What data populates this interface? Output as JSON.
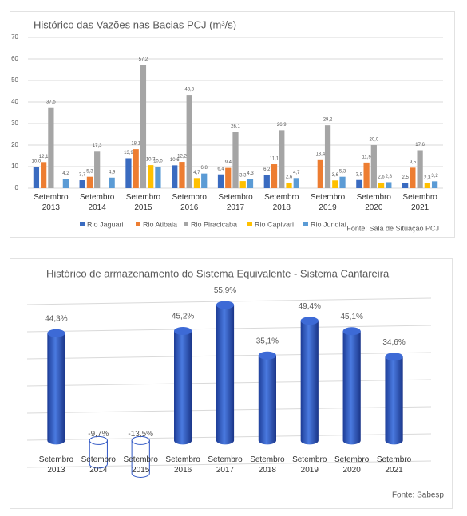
{
  "chart_data": [
    {
      "type": "bar",
      "title": "Histórico das Vazões nas Bacias PCJ (m³/s)",
      "source": "Fonte: Sala de Situação PCJ",
      "categories": [
        "Setembro 2013",
        "Setembro 2014",
        "Setembro 2015",
        "Setembro 2016",
        "Setembro 2017",
        "Setembro 2018",
        "Setembro 2019",
        "Setembro 2020",
        "Setembro 2021"
      ],
      "series": [
        {
          "name": "Rio Jaguari",
          "color": "#3a6bc0",
          "values": [
            10.0,
            3.7,
            13.9,
            10.6,
            6.4,
            6.2,
            null,
            3.8,
            2.5
          ],
          "value_labels": [
            "10,0",
            "3,7",
            "13,9",
            "10,6",
            "6,4",
            "6,2",
            null,
            "3,8",
            "2,5"
          ]
        },
        {
          "name": "Rio Atibaia",
          "color": "#ed7d31",
          "values": [
            12.1,
            5.3,
            18.1,
            12.2,
            9.4,
            11.1,
            13.4,
            11.9,
            9.5
          ],
          "value_labels": [
            "12,1",
            "5,3",
            "18,1",
            "12,2",
            "9,4",
            "11,1",
            "13,4",
            "11,9",
            "9,5"
          ]
        },
        {
          "name": "Rio Piracicaba",
          "color": "#a5a5a5",
          "values": [
            37.5,
            17.3,
            57.2,
            43.3,
            26.1,
            26.9,
            29.2,
            20.0,
            17.6
          ],
          "value_labels": [
            "37,5",
            "17,3",
            "57,2",
            "43,3",
            "26,1",
            "26,9",
            "29,2",
            "20,0",
            "17,6"
          ]
        },
        {
          "name": "Rio Capivari",
          "color": "#ffc000",
          "values": [
            null,
            null,
            10.7,
            4.7,
            3.3,
            2.6,
            3.6,
            2.6,
            2.3
          ],
          "value_labels": [
            null,
            null,
            "10,7",
            "4,7",
            "3,3",
            "2,6",
            "3,6",
            "2,6",
            "2,3"
          ]
        },
        {
          "name": "Rio Jundiaí",
          "color": "#5b9bd5",
          "values": [
            4.2,
            4.9,
            10.0,
            6.8,
            4.3,
            4.7,
            5.3,
            2.8,
            3.2
          ],
          "value_labels": [
            "4,2",
            "4,9",
            "10,0",
            "6,8",
            "4,3",
            "4,7",
            "5,3",
            "2,8",
            "3,2"
          ]
        }
      ],
      "ylim": [
        0,
        70
      ],
      "yticks": [
        0,
        10,
        20,
        30,
        40,
        50,
        60,
        70
      ],
      "grid": true,
      "legend": "bottom"
    },
    {
      "type": "bar",
      "bar_style": "cylinder",
      "title": "Histórico de armazenamento do Sistema Equivalente - Sistema Cantareira",
      "source": "Fonte: Sabesp",
      "categories": [
        "Setembro 2013",
        "Setembro 2014",
        "Setembro 2015",
        "Setembro 2016",
        "Setembro 2017",
        "Setembro 2018",
        "Setembro 2019",
        "Setembro 2020",
        "Setembro 2021"
      ],
      "values": [
        44.3,
        -9.7,
        -13.5,
        45.2,
        55.9,
        35.1,
        49.4,
        45.1,
        34.6
      ],
      "value_labels": [
        "44,3%",
        "-9,7%",
        "-13,5%",
        "45,2%",
        "55,9%",
        "35,1%",
        "49,4%",
        "45,1%",
        "34,6%"
      ],
      "color": "#2f56c4",
      "ylim": [
        -15,
        60
      ],
      "grid": true
    }
  ]
}
